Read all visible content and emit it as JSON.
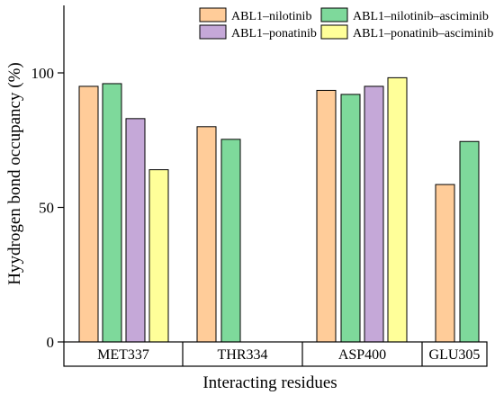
{
  "chart_data": {
    "type": "bar",
    "title": "",
    "xlabel": "Interacting residues",
    "ylabel": "Hyydrogen bond occupancy (%)",
    "ylim": [
      0,
      125
    ],
    "yticks": [
      0,
      50,
      100
    ],
    "grid": false,
    "legend_position": "top-right",
    "categories": [
      "MET337",
      "THR334",
      "ASP400",
      "GLU305"
    ],
    "series": [
      {
        "name": "ABL1–nilotinib",
        "color": "#ffcc99",
        "values": [
          95,
          80,
          93.5,
          58.5
        ]
      },
      {
        "name": "ABL1–nilotinib–asciminib",
        "color": "#7ed99b",
        "values": [
          96,
          75.3,
          92,
          74.5
        ]
      },
      {
        "name": "ABL1–ponatinib",
        "color": "#c5a8d8",
        "values": [
          83,
          null,
          95,
          null
        ]
      },
      {
        "name": "ABL1–ponatinib–asciminib",
        "color": "#ffff99",
        "values": [
          64,
          null,
          98.2,
          null
        ]
      }
    ]
  }
}
